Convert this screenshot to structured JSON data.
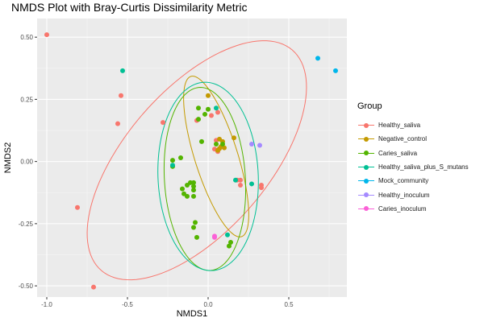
{
  "chart_data": {
    "type": "scatter",
    "title": "NMDS Plot with Bray-Curtis Dissimilarity Metric",
    "xlabel": "NMDS1",
    "ylabel": "NMDS2",
    "xlim": [
      -1.06,
      0.86
    ],
    "ylim": [
      -0.545,
      0.575
    ],
    "x_ticks": [
      -1.0,
      -0.5,
      0.0,
      0.5
    ],
    "x_tick_labels": [
      "-1.0",
      "-0.5",
      "0.0",
      "0.5"
    ],
    "y_ticks": [
      -0.5,
      -0.25,
      0.0,
      0.25,
      0.5
    ],
    "y_tick_labels": [
      "-0.50",
      "-0.25",
      "0.00",
      "0.25",
      "0.50"
    ],
    "grid": true,
    "legend_position": "right",
    "legend_title": "Group",
    "series": [
      {
        "name": "Healthy_saliva",
        "color": "#F8766D",
        "points": [
          [
            -1.0,
            0.51
          ],
          [
            -0.81,
            -0.185
          ],
          [
            -0.71,
            -0.505
          ],
          [
            -0.54,
            0.265
          ],
          [
            -0.56,
            0.152
          ],
          [
            -0.28,
            0.157
          ],
          [
            -0.07,
            0.165
          ],
          [
            0.02,
            0.185
          ],
          [
            0.06,
            0.198
          ],
          [
            0.05,
            0.085
          ],
          [
            0.04,
            0.05
          ],
          [
            0.06,
            0.04
          ],
          [
            0.18,
            -0.075
          ],
          [
            0.2,
            -0.075
          ],
          [
            0.2,
            -0.095
          ],
          [
            0.33,
            -0.095
          ],
          [
            0.33,
            -0.105
          ]
        ],
        "ellipse": {
          "cx": -0.07,
          "cy": 0.005,
          "rx": 0.76,
          "ry": 0.34,
          "angle_deg": 30
        }
      },
      {
        "name": "Negative_control",
        "color": "#C49A00",
        "points": [
          [
            0.0,
            0.265
          ],
          [
            0.07,
            0.09
          ],
          [
            0.09,
            0.08
          ],
          [
            0.08,
            0.06
          ],
          [
            0.1,
            0.055
          ],
          [
            0.07,
            0.052
          ],
          [
            0.06,
            0.045
          ],
          [
            0.16,
            0.095
          ]
        ],
        "ellipse": {
          "cx": 0.05,
          "cy": 0.02,
          "rx": 0.36,
          "ry": 0.125,
          "angle_deg": -62
        }
      },
      {
        "name": "Caries_saliva",
        "color": "#53B400",
        "points": [
          [
            -0.06,
            0.215
          ],
          [
            0.0,
            0.21
          ],
          [
            -0.02,
            0.19
          ],
          [
            -0.06,
            0.17
          ],
          [
            -0.04,
            0.08
          ],
          [
            0.05,
            0.07
          ],
          [
            0.09,
            0.07
          ],
          [
            -0.22,
            0.005
          ],
          [
            -0.17,
            0.015
          ],
          [
            -0.22,
            -0.02
          ],
          [
            -0.13,
            -0.095
          ],
          [
            -0.11,
            -0.085
          ],
          [
            -0.09,
            -0.085
          ],
          [
            -0.09,
            -0.1
          ],
          [
            -0.16,
            -0.11
          ],
          [
            -0.15,
            -0.13
          ],
          [
            -0.13,
            -0.14
          ],
          [
            -0.09,
            -0.115
          ],
          [
            -0.09,
            -0.14
          ],
          [
            -0.08,
            -0.245
          ],
          [
            -0.09,
            -0.265
          ],
          [
            -0.07,
            -0.305
          ],
          [
            0.14,
            -0.325
          ],
          [
            0.13,
            -0.34
          ]
        ],
        "ellipse": {
          "cx": -0.02,
          "cy": -0.07,
          "rx": 0.37,
          "ry": 0.25,
          "angle_deg": -82
        }
      },
      {
        "name": "Healthy_saliva_plus_S_mutans",
        "color": "#00C094",
        "points": [
          [
            -0.53,
            0.365
          ],
          [
            0.05,
            0.215
          ],
          [
            -0.22,
            -0.015
          ],
          [
            0.17,
            -0.075
          ],
          [
            0.27,
            -0.09
          ],
          [
            0.12,
            -0.295
          ]
        ],
        "ellipse": {
          "cx": 0.0,
          "cy": -0.06,
          "rx": 0.38,
          "ry": 0.31,
          "angle_deg": -82
        }
      },
      {
        "name": "Mock_community",
        "color": "#00B6EB",
        "points": [
          [
            0.68,
            0.415
          ],
          [
            0.79,
            0.365
          ]
        ],
        "ellipse": null
      },
      {
        "name": "Healthy_inoculum",
        "color": "#A58AFF",
        "points": [
          [
            0.27,
            0.07
          ],
          [
            0.32,
            0.065
          ]
        ],
        "ellipse": null
      },
      {
        "name": "Caries_inoculum",
        "color": "#FB61D7",
        "points": [
          [
            0.04,
            -0.305
          ],
          [
            0.04,
            -0.3
          ]
        ],
        "ellipse": null
      }
    ]
  }
}
